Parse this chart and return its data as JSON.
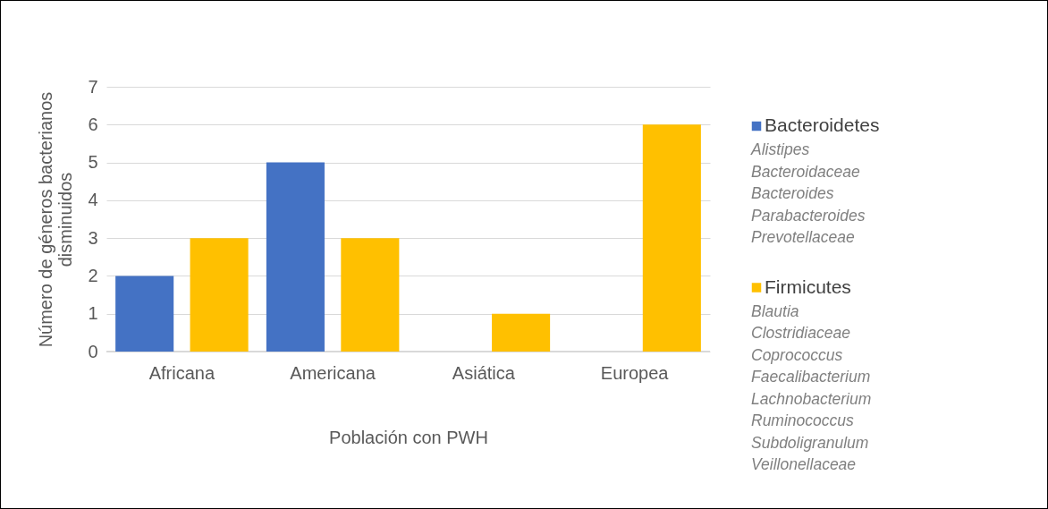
{
  "chart_data": {
    "type": "bar",
    "categories": [
      "Africana",
      "Americana",
      "Asiática",
      "Europea"
    ],
    "series": [
      {
        "name": "Bacteroidetes",
        "color": "#4472c4",
        "values": [
          2,
          5,
          0,
          0
        ]
      },
      {
        "name": "Firmicutes",
        "color": "#ffc000",
        "values": [
          3,
          3,
          1,
          6
        ]
      }
    ],
    "xlabel": "Población con PWH",
    "ylabel": "Número de géneros bacterianos disminuidos",
    "ylim": [
      0,
      7
    ],
    "yticks": [
      0,
      1,
      2,
      3,
      4,
      5,
      6,
      7
    ],
    "grid": "y",
    "legend": "right",
    "annotations": [
      "Alistipes\nBacteroidaceae\nBacteroides\nParabacteroides\nPrevotellaceae",
      "Blautia\nClostridiaceae\nCoprococcus\nFaecalibacterium\nLachnobacterium\nRuminococcus\nSubdoligranulum\nVeillonellaceae"
    ]
  }
}
